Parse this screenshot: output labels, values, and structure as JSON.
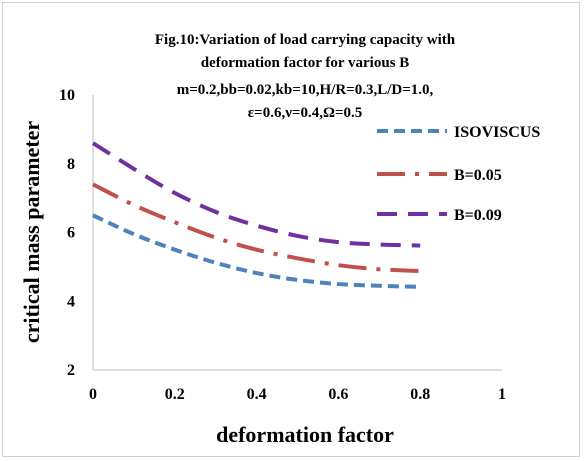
{
  "chart_data": {
    "type": "line",
    "title_lines": [
      "Fig.10:Variation of load carrying capacity with",
      "deformation factor for various B",
      "m=0.2,bb=0.02,kb=10,H/R=0.3,L/D=1.0,",
      "ε=0.6,ν=0.4,Ω=0.5"
    ],
    "xlabel": "deformation factor",
    "ylabel": "critical mass parameter",
    "xlim": [
      0,
      1
    ],
    "ylim": [
      2,
      10
    ],
    "x_ticks": [
      "0",
      "0.2",
      "0.4",
      "0.6",
      "0.8",
      "1"
    ],
    "y_ticks": [
      "2",
      "4",
      "6",
      "8",
      "10"
    ],
    "grid": false,
    "legend_position": "right",
    "x": [
      0,
      0.1,
      0.2,
      0.3,
      0.4,
      0.5,
      0.6,
      0.7,
      0.8
    ],
    "series": [
      {
        "name": "ISOVISCUS",
        "color": "#4f81bd",
        "dash": "dash",
        "values": [
          6.5,
          5.95,
          5.5,
          5.12,
          4.82,
          4.62,
          4.5,
          4.45,
          4.42
        ]
      },
      {
        "name": "B=0.05",
        "color": "#c0504d",
        "dash": "long-dash-dot",
        "values": [
          7.4,
          6.8,
          6.3,
          5.85,
          5.5,
          5.25,
          5.05,
          4.93,
          4.88
        ]
      },
      {
        "name": "B=0.09",
        "color": "#7030a0",
        "dash": "long-dash",
        "values": [
          8.6,
          7.85,
          7.15,
          6.6,
          6.2,
          5.9,
          5.72,
          5.65,
          5.62
        ]
      }
    ]
  }
}
